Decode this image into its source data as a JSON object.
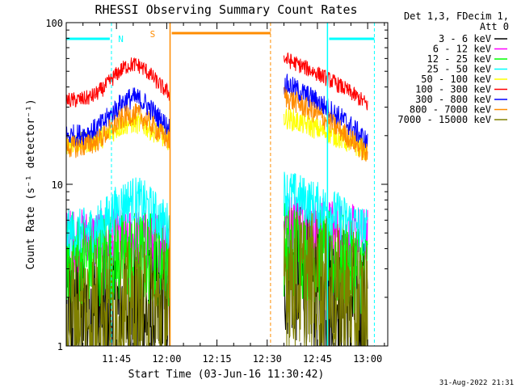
{
  "chart_data": {
    "type": "line",
    "title": "RHESSI Observing Summary Count Rates",
    "xlabel": "Start Time (03-Jun-16 11:30:42)",
    "ylabel": "Count Rate (s⁻¹ detector⁻¹)",
    "yscale": "log",
    "ylim": [
      1,
      100
    ],
    "xlim_minutes": [
      0,
      96
    ],
    "x_ticks": [
      {
        "m": 15,
        "label": "11:45"
      },
      {
        "m": 30,
        "label": "12:00"
      },
      {
        "m": 45,
        "label": "12:15"
      },
      {
        "m": 60,
        "label": "12:30"
      },
      {
        "m": 75,
        "label": "12:45"
      },
      {
        "m": 90,
        "label": "13:00"
      }
    ],
    "y_ticks": [
      {
        "v": 1,
        "label": "1"
      },
      {
        "v": 10,
        "label": "10"
      },
      {
        "v": 100,
        "label": "100"
      }
    ],
    "legend_header": [
      "Det 1,3, FDecim 1,",
      "Att 0"
    ],
    "footer_date": "31-Aug-2022 21:31",
    "series": [
      {
        "name": "3 - 6 keV",
        "color": "#000000",
        "seg1": [
          1.6,
          1.6
        ],
        "seg2": [
          3,
          1.6
        ],
        "noise": 0.45
      },
      {
        "name": "6 - 12 keV",
        "color": "#ff00ff",
        "seg1": [
          4.5,
          4.5
        ],
        "seg2": [
          6,
          4.5
        ],
        "noise": 0.2
      },
      {
        "name": "12 - 25 keV",
        "color": "#00ff00",
        "seg1": [
          3.5,
          3.5
        ],
        "seg2": [
          4,
          3
        ],
        "noise": 0.3
      },
      {
        "name": "25 - 50 keV",
        "color": "#00ffff",
        "seg1": [
          5,
          5
        ],
        "seg2": [
          9,
          5
        ],
        "noise": 0.15,
        "peak1": 8
      },
      {
        "name": "50 - 100 keV",
        "color": "#ffff00",
        "seg1": [
          18,
          17
        ],
        "seg2": [
          26,
          16
        ],
        "noise": 0.07,
        "peak1": 24
      },
      {
        "name": "100 - 300 keV",
        "color": "#ff0000",
        "seg1": [
          33,
          32
        ],
        "seg2": [
          60,
          31
        ],
        "noise": 0.05,
        "peak1": 55
      },
      {
        "name": "300 - 800 keV",
        "color": "#0000ff",
        "seg1": [
          20,
          19
        ],
        "seg2": [
          42,
          18
        ],
        "noise": 0.07,
        "peak1": 34
      },
      {
        "name": "800 - 7000 keV",
        "color": "#ff8c00",
        "seg1": [
          17,
          16
        ],
        "seg2": [
          35,
          15
        ],
        "noise": 0.07,
        "peak1": 27
      },
      {
        "name": "7000 - 15000 keV",
        "color": "#808000",
        "seg1": [
          1.6,
          1.6
        ],
        "seg2": [
          2.8,
          1.6
        ],
        "noise": 0.45
      }
    ],
    "data_segments_minutes": [
      [
        0,
        31
      ],
      [
        65,
        90
      ]
    ],
    "annotations": [
      {
        "label": "N",
        "color": "#00ffff",
        "x_min": 11.5
      },
      {
        "label": "S",
        "color": "#ff8c00",
        "x_min": 30.3
      }
    ]
  }
}
